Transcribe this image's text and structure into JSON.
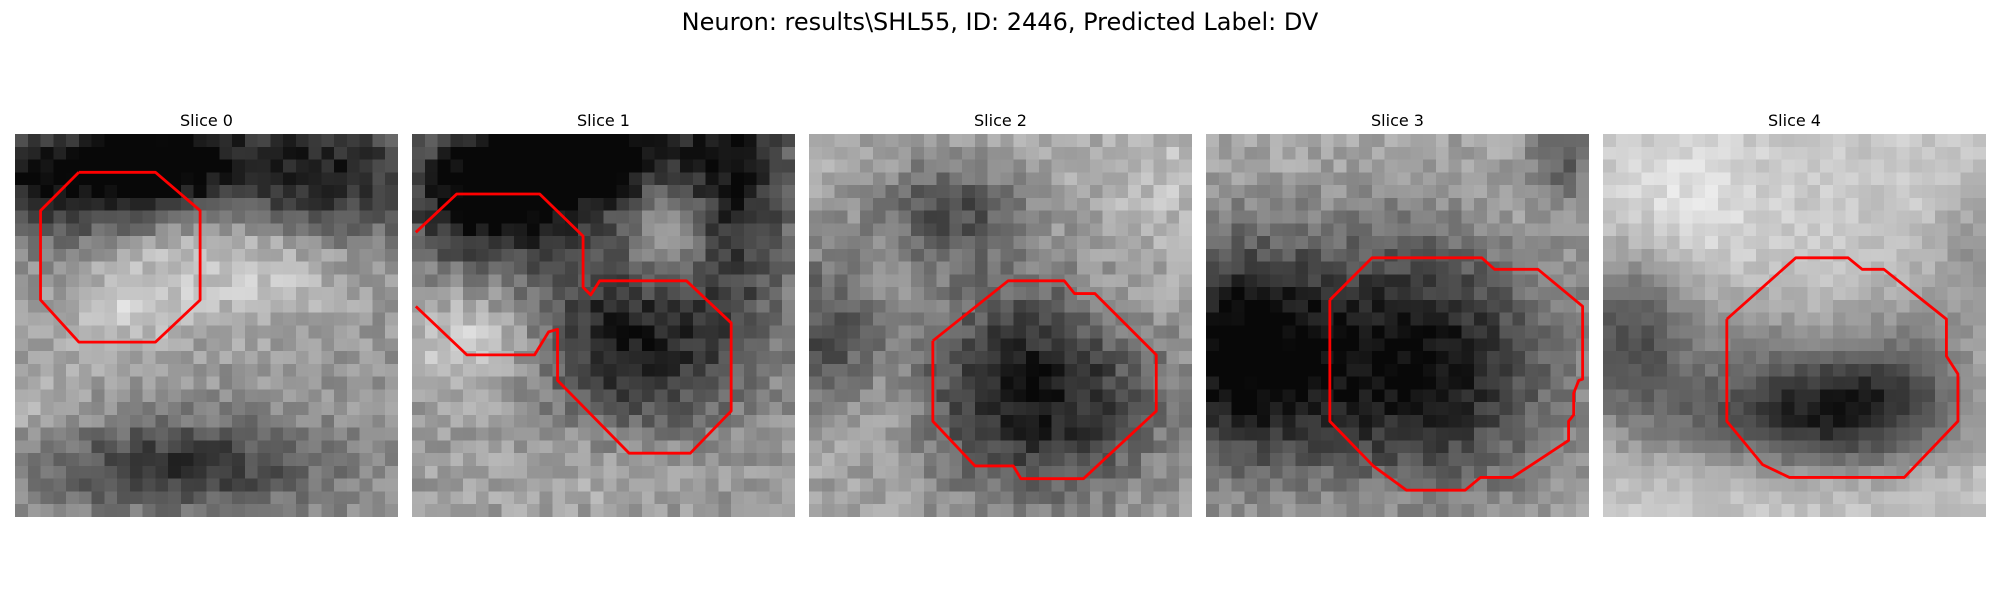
{
  "figure": {
    "title": "Neuron: results\\SHL55, ID: 2446, Predicted Label: DV",
    "roi_color": "#ff0000"
  },
  "panels": [
    {
      "title": "Slice 0"
    },
    {
      "title": "Slice 1"
    },
    {
      "title": "Slice 2"
    },
    {
      "title": "Slice 3"
    },
    {
      "title": "Slice 4"
    }
  ]
}
